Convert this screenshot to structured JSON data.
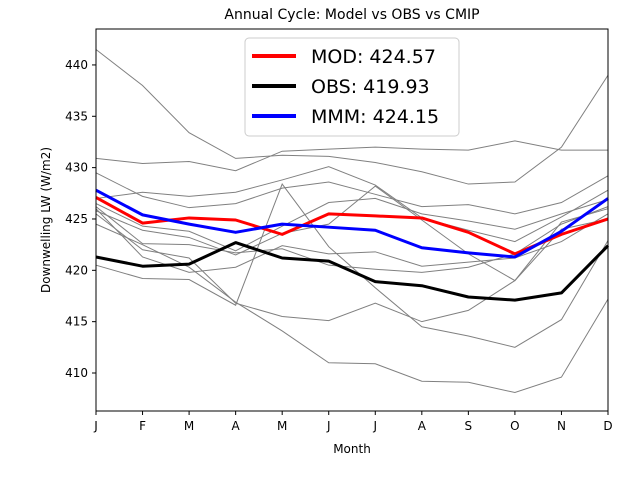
{
  "chart_data": {
    "type": "line",
    "title": "Annual Cycle: Model vs OBS vs CMIP",
    "xlabel": "Month",
    "ylabel": "Downwelling LW (W/m2)",
    "categories": [
      "J",
      "F",
      "M",
      "A",
      "M",
      "J",
      "J",
      "A",
      "S",
      "O",
      "N",
      "D"
    ],
    "ylim": [
      406.3,
      443.5
    ],
    "yticks": [
      410,
      415,
      420,
      425,
      430,
      435,
      440
    ],
    "grid": false,
    "legend_position": "top-center",
    "background_series": [
      {
        "color": "#808080",
        "values": [
          441.5,
          438.0,
          433.4,
          430.9,
          431.2,
          431.1,
          430.5,
          429.6,
          428.4,
          428.6,
          432.0,
          439.0
        ]
      },
      {
        "color": "#808080",
        "values": [
          430.9,
          430.4,
          430.6,
          429.7,
          431.6,
          431.8,
          432.0,
          431.8,
          431.7,
          432.6,
          431.7,
          431.7
        ]
      },
      {
        "color": "#808080",
        "values": [
          429.5,
          427.2,
          426.1,
          426.5,
          428.0,
          428.6,
          427.4,
          426.2,
          426.4,
          425.5,
          426.6,
          429.2
        ]
      },
      {
        "color": "#808080",
        "values": [
          427.0,
          427.6,
          427.2,
          427.6,
          428.8,
          430.1,
          428.3,
          425.1,
          423.9,
          422.8,
          425.2,
          427.8
        ]
      },
      {
        "color": "#808080",
        "values": [
          426.5,
          424.3,
          423.8,
          421.9,
          424.3,
          426.6,
          427.0,
          425.5,
          424.8,
          424.0,
          425.5,
          426.9
        ]
      },
      {
        "color": "#808080",
        "values": [
          426.2,
          422.6,
          422.5,
          421.7,
          422.1,
          420.5,
          420.1,
          419.8,
          420.3,
          421.6,
          424.5,
          426.2
        ]
      },
      {
        "color": "#808080",
        "values": [
          426.0,
          421.3,
          419.8,
          420.3,
          422.4,
          421.6,
          421.8,
          420.4,
          420.8,
          421.2,
          422.8,
          425.5
        ]
      },
      {
        "color": "#808080",
        "values": [
          425.8,
          423.9,
          423.2,
          421.5,
          423.6,
          424.5,
          428.2,
          424.9,
          421.6,
          419.0,
          424.7,
          426.0
        ]
      },
      {
        "color": "#808080",
        "values": [
          425.5,
          422.0,
          421.2,
          416.8,
          415.5,
          415.1,
          416.8,
          415.0,
          416.1,
          419.0,
          424.0,
          425.0
        ]
      },
      {
        "color": "#808080",
        "values": [
          424.5,
          422.5,
          420.3,
          416.9,
          414.1,
          411.0,
          410.9,
          409.2,
          409.1,
          408.1,
          409.6,
          417.2
        ]
      },
      {
        "color": "#808080",
        "values": [
          420.5,
          419.2,
          419.1,
          416.6,
          428.4,
          422.3,
          418.3,
          414.5,
          413.6,
          412.5,
          415.2,
          422.9
        ]
      }
    ],
    "series": [
      {
        "name": "MOD: 424.57",
        "color": "#ff0000",
        "values": [
          427.1,
          424.6,
          425.1,
          424.9,
          423.5,
          425.5,
          425.3,
          425.1,
          423.7,
          421.6,
          423.5,
          425.0
        ]
      },
      {
        "name": "OBS: 419.93",
        "color": "#000000",
        "values": [
          421.3,
          420.4,
          420.6,
          422.7,
          421.2,
          420.9,
          418.9,
          418.5,
          417.4,
          417.1,
          417.8,
          422.4
        ]
      },
      {
        "name": "MMM: 424.15",
        "color": "#0000ff",
        "values": [
          427.8,
          425.4,
          424.5,
          423.7,
          424.5,
          424.2,
          423.9,
          422.2,
          421.7,
          421.3,
          423.8,
          427.0
        ]
      }
    ]
  }
}
